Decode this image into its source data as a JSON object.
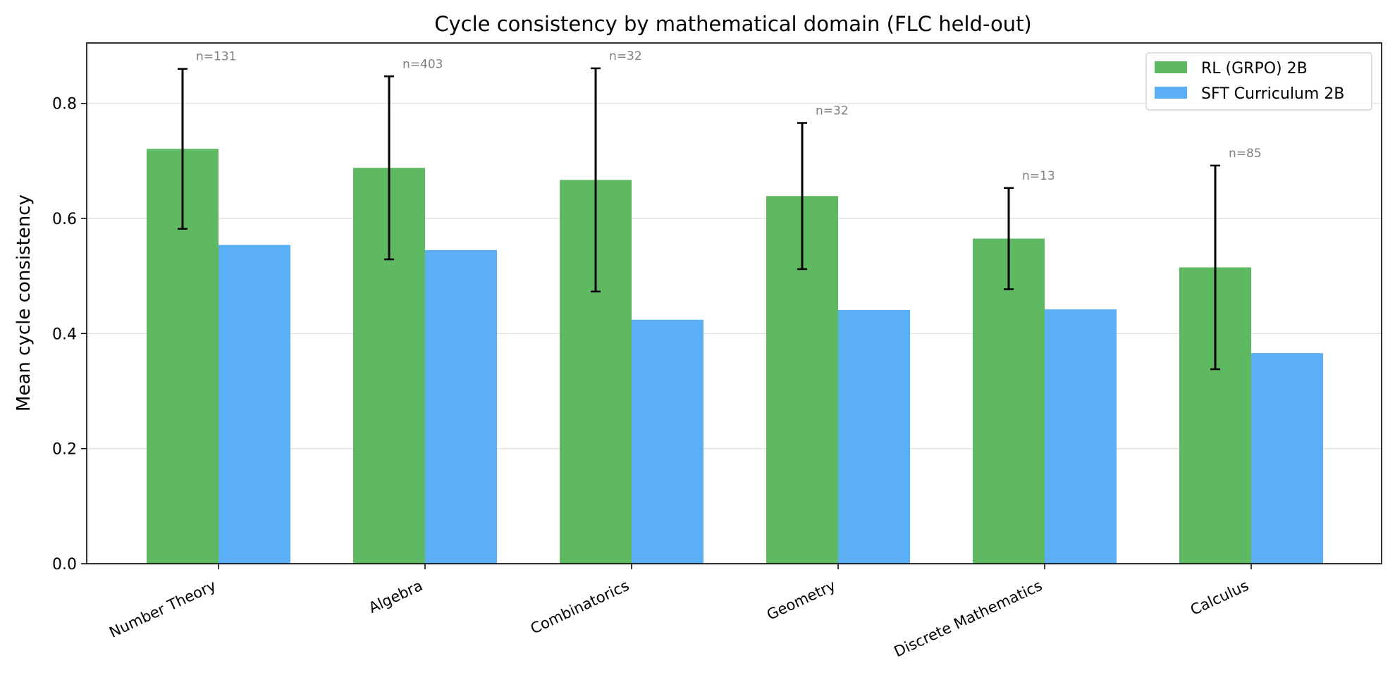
{
  "chart_data": {
    "type": "bar",
    "title": "Cycle consistency by mathematical domain (FLC held-out)",
    "xlabel": "",
    "ylabel": "Mean cycle consistency",
    "ylim": [
      0,
      0.905
    ],
    "yticks": [
      "0.0",
      "0.2",
      "0.4",
      "0.6",
      "0.8"
    ],
    "ytick_values": [
      0,
      0.2,
      0.4,
      0.6,
      0.8
    ],
    "grid": "horizontal",
    "legend_position": "top-right",
    "categories": [
      "Number Theory",
      "Algebra",
      "Combinatorics",
      "Geometry",
      "Discrete Mathematics",
      "Calculus"
    ],
    "series": [
      {
        "name": "RL (GRPO) 2B",
        "color": "#5fb962",
        "values": [
          0.721,
          0.688,
          0.667,
          0.639,
          0.565,
          0.515
        ],
        "err": [
          0.139,
          0.159,
          0.194,
          0.127,
          0.088,
          0.177
        ]
      },
      {
        "name": "SFT Curriculum 2B",
        "color": "#5aaff5",
        "values": [
          0.554,
          0.545,
          0.424,
          0.441,
          0.442,
          0.366
        ]
      }
    ],
    "annotations": [
      "n=131",
      "n=403",
      "n=32",
      "n=32",
      "n=13",
      "n=85"
    ]
  }
}
